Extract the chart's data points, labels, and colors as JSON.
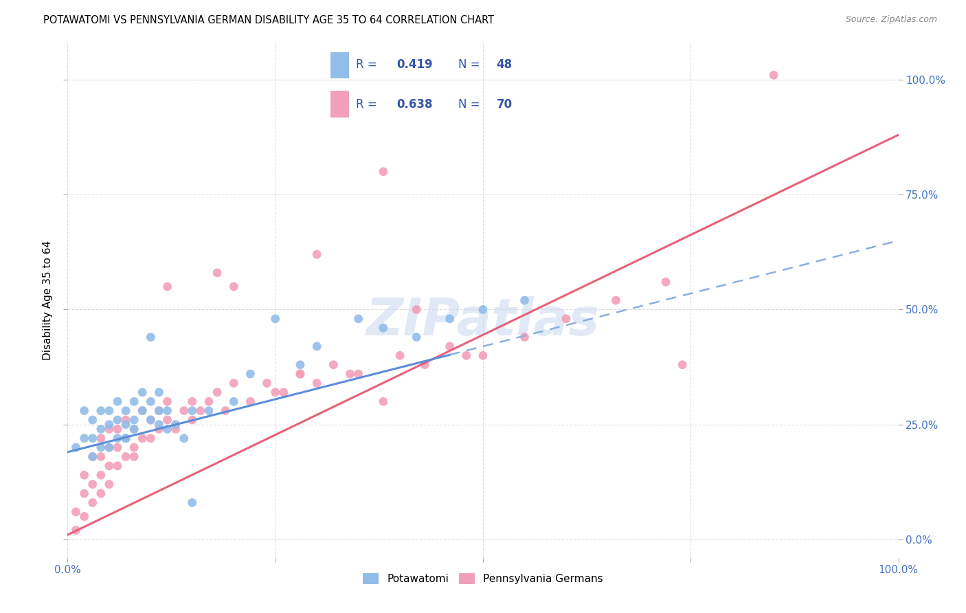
{
  "title": "POTAWATOMI VS PENNSYLVANIA GERMAN DISABILITY AGE 35 TO 64 CORRELATION CHART",
  "source": "Source: ZipAtlas.com",
  "ylabel": "Disability Age 35 to 64",
  "potawatomi_color": "#92BDE8",
  "penn_german_color": "#F2A0B8",
  "trend_blue": "#5B8DD9",
  "trend_blue_dashed": "#8AAEE0",
  "trend_pink": "#E8607A",
  "legend_color": "#3355AA",
  "grid_color": "#DDDDDD",
  "R_potawatomi": 0.419,
  "N_potawatomi": 48,
  "R_penn_german": 0.638,
  "N_penn_german": 70,
  "xlim": [
    0.0,
    1.0
  ],
  "ylim": [
    -0.04,
    1.08
  ],
  "y_ticks": [
    0.0,
    0.25,
    0.5,
    0.75,
    1.0
  ],
  "y_tick_labels": [
    "0.0%",
    "25.0%",
    "50.0%",
    "75.0%",
    "100.0%"
  ],
  "x_ticks": [
    0.0,
    0.25,
    0.5,
    0.75,
    1.0
  ],
  "x_tick_labels": [
    "0.0%",
    "",
    "",
    "",
    "100.0%"
  ],
  "pot_x": [
    0.01,
    0.02,
    0.02,
    0.03,
    0.03,
    0.03,
    0.04,
    0.04,
    0.04,
    0.05,
    0.05,
    0.05,
    0.06,
    0.06,
    0.06,
    0.07,
    0.07,
    0.07,
    0.07,
    0.08,
    0.08,
    0.08,
    0.09,
    0.09,
    0.1,
    0.1,
    0.11,
    0.11,
    0.11,
    0.12,
    0.12,
    0.13,
    0.14,
    0.15,
    0.15,
    0.1,
    0.17,
    0.2,
    0.22,
    0.25,
    0.28,
    0.3,
    0.35,
    0.38,
    0.42,
    0.46,
    0.5,
    0.55
  ],
  "pot_y": [
    0.2,
    0.22,
    0.28,
    0.18,
    0.22,
    0.26,
    0.2,
    0.24,
    0.28,
    0.2,
    0.25,
    0.28,
    0.22,
    0.26,
    0.3,
    0.22,
    0.25,
    0.28,
    0.22,
    0.26,
    0.3,
    0.24,
    0.28,
    0.32,
    0.26,
    0.3,
    0.25,
    0.28,
    0.32,
    0.24,
    0.28,
    0.25,
    0.22,
    0.28,
    0.08,
    0.44,
    0.28,
    0.3,
    0.36,
    0.48,
    0.38,
    0.42,
    0.48,
    0.46,
    0.44,
    0.48,
    0.5,
    0.52
  ],
  "pg_x": [
    0.01,
    0.01,
    0.02,
    0.02,
    0.02,
    0.03,
    0.03,
    0.03,
    0.04,
    0.04,
    0.04,
    0.04,
    0.05,
    0.05,
    0.05,
    0.05,
    0.06,
    0.06,
    0.06,
    0.07,
    0.07,
    0.07,
    0.08,
    0.08,
    0.08,
    0.09,
    0.09,
    0.1,
    0.1,
    0.11,
    0.11,
    0.12,
    0.12,
    0.13,
    0.14,
    0.15,
    0.15,
    0.16,
    0.17,
    0.18,
    0.19,
    0.2,
    0.22,
    0.24,
    0.26,
    0.28,
    0.3,
    0.32,
    0.35,
    0.38,
    0.4,
    0.43,
    0.46,
    0.5,
    0.55,
    0.6,
    0.66,
    0.72,
    0.38,
    0.3,
    0.2,
    0.25,
    0.18,
    0.12,
    0.28,
    0.34,
    0.42,
    0.48,
    0.74,
    0.85
  ],
  "pg_y": [
    0.02,
    0.06,
    0.05,
    0.1,
    0.14,
    0.08,
    0.12,
    0.18,
    0.1,
    0.14,
    0.18,
    0.22,
    0.12,
    0.16,
    0.2,
    0.24,
    0.16,
    0.2,
    0.24,
    0.18,
    0.22,
    0.26,
    0.2,
    0.24,
    0.18,
    0.22,
    0.28,
    0.22,
    0.26,
    0.24,
    0.28,
    0.26,
    0.3,
    0.24,
    0.28,
    0.26,
    0.3,
    0.28,
    0.3,
    0.32,
    0.28,
    0.34,
    0.3,
    0.34,
    0.32,
    0.36,
    0.34,
    0.38,
    0.36,
    0.3,
    0.4,
    0.38,
    0.42,
    0.4,
    0.44,
    0.48,
    0.52,
    0.56,
    0.8,
    0.62,
    0.55,
    0.32,
    0.58,
    0.55,
    0.36,
    0.36,
    0.5,
    0.4,
    0.38,
    1.01
  ],
  "pot_line_x0": 0.0,
  "pot_line_y0": 0.19,
  "pot_line_x1": 1.0,
  "pot_line_y1": 0.65,
  "pg_line_x0": 0.0,
  "pg_line_y0": 0.01,
  "pg_line_x1": 1.0,
  "pg_line_y1": 0.88
}
